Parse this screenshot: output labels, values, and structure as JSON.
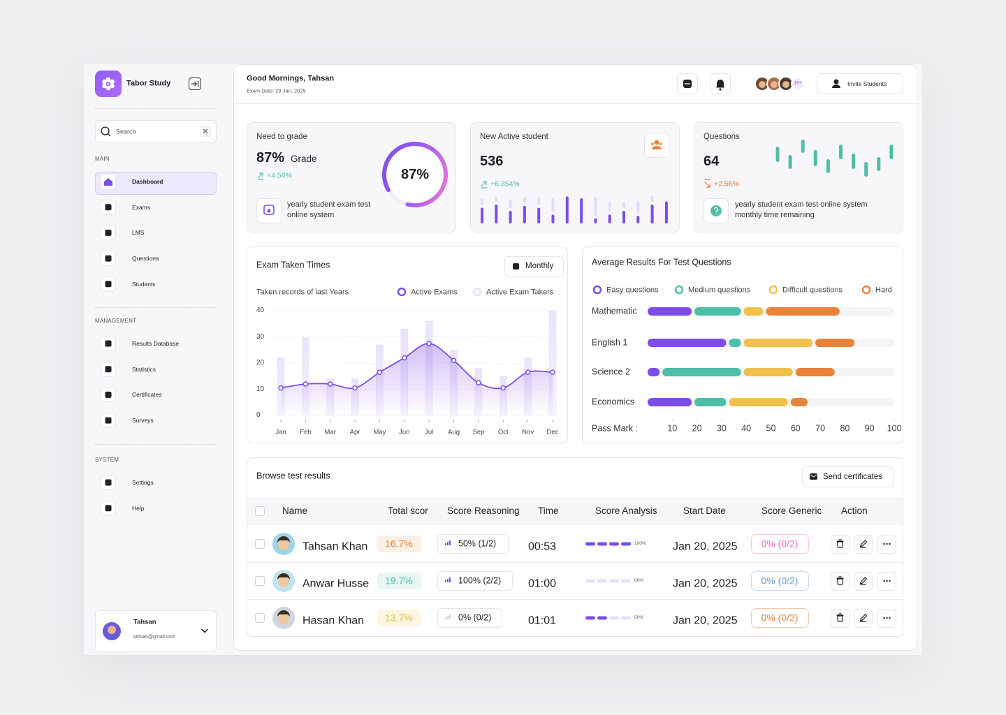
{
  "sidebar": {
    "brand": "Tabor Study",
    "search": {
      "placeholder": "Search",
      "shortcut": "⌘"
    },
    "sections": [
      {
        "title": "MAIN",
        "items": [
          "Dashboard",
          "Exams",
          "LMS",
          "Questions",
          "Students"
        ]
      },
      {
        "title": "MANAGEMENT",
        "items": [
          "Results Database",
          "Statistics",
          "Certificates",
          "Surveys"
        ]
      },
      {
        "title": "SYSTEM",
        "items": [
          "Settings",
          "Help"
        ]
      }
    ],
    "user": {
      "name": "Tahsan",
      "email": "tahsan@gmail.com"
    }
  },
  "header": {
    "greeting": "Good Mornings, Tahsan",
    "date": "Exam Date: 29 Jan, 2025",
    "more_avatars": "10+",
    "invite": "Invite Students"
  },
  "cards": {
    "grade": {
      "title": "Need to grade",
      "value": "87%",
      "unit": "Grade",
      "change": "+4.56%",
      "note": "yearly student exam test online system",
      "ring": {
        "value": 87,
        "label": "87%"
      }
    },
    "active": {
      "title": "New Active student",
      "value": "536",
      "change": "+6.354%"
    },
    "questions": {
      "title": "Questions",
      "value": "64",
      "change": "+2.56%",
      "note": "yearly student exam test online system monthly time remaining"
    }
  },
  "chart_data": [
    {
      "type": "stacked-bar",
      "categories": [
        null,
        null,
        null,
        null,
        null,
        null,
        null,
        null,
        null,
        null,
        null,
        null,
        null,
        null
      ],
      "ylim": [
        0,
        50
      ],
      "series": [
        {
          "color": "#7c4dea",
          "values": [
            25,
            30,
            20,
            28,
            25,
            14,
            43,
            40,
            8,
            14,
            20,
            12,
            30,
            35
          ]
        },
        {
          "color": "#e4dcfc",
          "values": [
            10,
            8,
            14,
            10,
            12,
            22,
            0,
            0,
            30,
            16,
            10,
            20,
            10,
            0
          ]
        }
      ]
    },
    {
      "type": "range",
      "categories": [
        null,
        null,
        null,
        null,
        null,
        null,
        null,
        null,
        null,
        null
      ],
      "ylim": [
        0,
        60
      ],
      "color": "#4dbfa9",
      "lows": [
        23,
        13,
        36,
        17,
        7,
        27,
        13,
        2,
        10,
        27
      ],
      "highs": [
        45,
        33,
        55,
        40,
        27,
        48,
        35,
        23,
        30,
        48
      ]
    },
    {
      "type": "combo",
      "title": "Exam Taken Times",
      "subtitle": "Taken records of last Years",
      "period": "Monthly",
      "categories": [
        "Jan",
        "Feb",
        "Mar",
        "Apr",
        "May",
        "Jun",
        "Jul",
        "Aug",
        "Sep",
        "Oct",
        "Nov",
        "Dec"
      ],
      "series": [
        {
          "name": "Active Exams",
          "type": "line",
          "color": "#7c4dea",
          "values": [
            10.5,
            12,
            12,
            10.5,
            16.5,
            22,
            27.5,
            21,
            12.5,
            10.5,
            16.5,
            16.5
          ]
        },
        {
          "name": "Active Exam Takers",
          "type": "bar",
          "color": "#e6defc",
          "values": [
            22,
            30,
            14,
            14,
            27,
            33,
            36,
            25,
            18,
            15,
            22,
            40
          ]
        }
      ],
      "ylim": [
        0,
        40
      ],
      "yticks": [
        0,
        10,
        20,
        30,
        40
      ],
      "grid": true
    },
    {
      "type": "stacked-barh",
      "title": "Average Results For Test Questions",
      "categories": [
        "Mathematic",
        "English 1",
        "Science 2",
        "Economics"
      ],
      "series": [
        {
          "name": "Easy questions",
          "color": "#7c4dea",
          "values": [
            19,
            33,
            6,
            19
          ]
        },
        {
          "name": "Medium questions",
          "color": "#4dbfa9",
          "values": [
            20,
            6,
            33,
            14
          ]
        },
        {
          "name": "Difficult questions",
          "color": "#f0c24b",
          "values": [
            9,
            29,
            21,
            25
          ]
        },
        {
          "name": "Hard",
          "color": "#e8843a",
          "values": [
            31,
            17,
            17,
            8
          ]
        }
      ],
      "xlabel": "Pass Mark :",
      "xlim": [
        0,
        100
      ],
      "xticks": [
        10,
        20,
        30,
        40,
        50,
        60,
        70,
        80,
        90,
        100
      ]
    }
  ],
  "table": {
    "title": "Browse test results",
    "action": "Send certificates",
    "columns": [
      "Name",
      "Total scor",
      "Score Reasoning",
      "Time",
      "Score Analysis",
      "Start Date",
      "Score Generic",
      "Action"
    ],
    "rows": [
      {
        "name": "Tahsan Khan",
        "total": "16.7%",
        "reasoning": "50% (1/2)",
        "time": "00:53",
        "analysis": {
          "value": 100,
          "label": "100%"
        },
        "start": "Jan 20, 2025",
        "generic": "0% (0/2)"
      },
      {
        "name": "Anwar Husse",
        "total": "19.7%",
        "reasoning": "100% (2/2)",
        "time": "01:00",
        "analysis": {
          "value": 0,
          "label": "00%"
        },
        "start": "Jan 20, 2025",
        "generic": "0% (0/2)"
      },
      {
        "name": "Hasan Khan",
        "total": "13.7%",
        "reasoning": "0% (0/2)",
        "time": "01:01",
        "analysis": {
          "value": 50,
          "label": "50%"
        },
        "start": "Jan 20, 2025",
        "generic": "0% (0/2)"
      }
    ]
  }
}
